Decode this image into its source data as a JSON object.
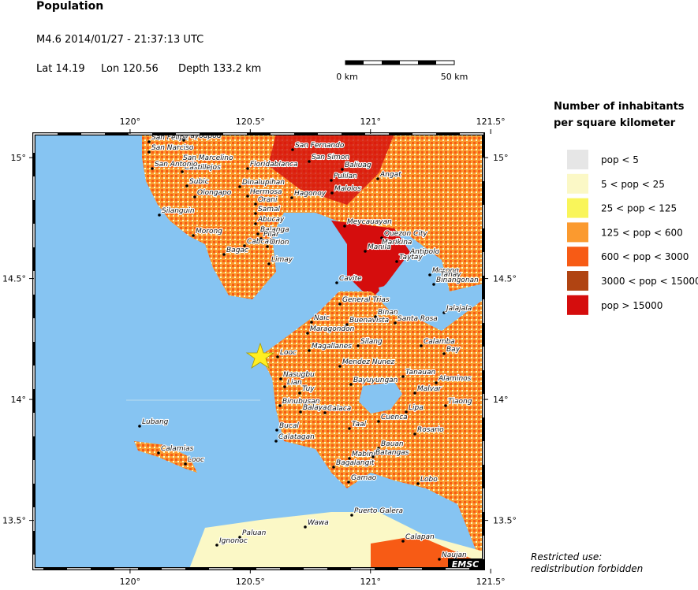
{
  "header": {
    "title": "Population",
    "event": "M4.6  2014/01/27 - 21:37:13 UTC",
    "lat": "Lat 14.19",
    "lon": "Lon 120.56",
    "depth": "Depth 133.2 km"
  },
  "scale_bar": {
    "start": "0 km",
    "end": "50 km"
  },
  "map": {
    "xlim": [
      119.6,
      121.47
    ],
    "ylim": [
      13.3,
      15.098
    ],
    "lon_ticks": [
      {
        "value": 120,
        "label": "120°"
      },
      {
        "value": 120.5,
        "label": "120.5°"
      },
      {
        "value": 121,
        "label": "121°"
      },
      {
        "value": 121.5,
        "label": "121.5°"
      }
    ],
    "lat_ticks": [
      {
        "value": 15,
        "label": "15°"
      },
      {
        "value": 14.5,
        "label": "14.5°"
      },
      {
        "value": 14,
        "label": "14°"
      },
      {
        "value": 13.5,
        "label": "13.5°"
      }
    ],
    "cities": [
      "San Felipe",
      "Payodpod",
      "San Narciso",
      "San Marcelino",
      "Castillejos",
      "San Antonio",
      "Subic",
      "Olongapo",
      "Silanguin",
      "Dinalupihan",
      "Hermosa",
      "Orani",
      "Samal",
      "Abucay",
      "Balanga",
      "Pilar",
      "Cabcaben",
      "Orion",
      "Morong",
      "Bagac",
      "Limay",
      "San Fernando",
      "Floridablanca",
      "San Simon",
      "Baliuag",
      "Pulilan",
      "Angat",
      "Malolos",
      "Hagonoy",
      "Meycauayan",
      "Quezon City",
      "Marikina",
      "Manila",
      "Antipolo",
      "Taytay",
      "Morong",
      "Tanay",
      "Binangonan",
      "Cavite",
      "General Trias",
      "Naic",
      "Maragondon",
      "Buenavista",
      "Binan",
      "Santa Rosa",
      "Jalajala",
      "Silang",
      "Calamba",
      "Bay",
      "Magallanes",
      "Looc",
      "Mendez Nunez",
      "Nasugbu",
      "Lian",
      "Tanauan",
      "Alaminos",
      "Bayuyungan",
      "Malvar",
      "Tuy",
      "Binubusan",
      "Balayan",
      "Calaca",
      "Lipa",
      "Tiaong",
      "Bucal",
      "Calatagan",
      "Cuenca",
      "Taal",
      "Rosario",
      "Bauan",
      "Mabini",
      "Batangas",
      "Bagalangit",
      "Gamao",
      "Lobo",
      "Lubang",
      "Calamias",
      "Looc",
      "Puerto Galera",
      "Wawa",
      "Paluan",
      "Ignonoc",
      "Calapan",
      "Naujan"
    ],
    "logo": "EMSC"
  },
  "legend": {
    "title": [
      "Number of inhabitants",
      "per square kilometer"
    ],
    "items": [
      {
        "label": "pop < 5",
        "color": "#e6e6e6"
      },
      {
        "label": "5 < pop < 25",
        "color": "#fbf8c6"
      },
      {
        "label": "25 < pop < 125",
        "color": "#f9f55a"
      },
      {
        "label": "125 < pop < 600",
        "color": "#fb9a2f"
      },
      {
        "label": "600 < pop < 3000",
        "color": "#f75b15"
      },
      {
        "label": "3000 < pop < 15000",
        "color": "#b04412"
      },
      {
        "label": "pop > 15000",
        "color": "#d50d0d"
      }
    ]
  },
  "note": [
    "Restricted use:",
    "redistribution forbidden"
  ]
}
